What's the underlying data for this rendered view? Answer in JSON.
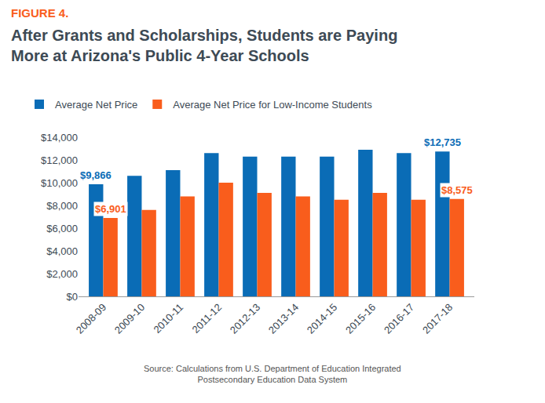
{
  "chart_data": {
    "type": "bar",
    "figure_label": "FIGURE 4.",
    "title": "After Grants and Scholarships, Students are Paying\nMore at Arizona's Public 4-Year Schools",
    "source": "Source: Calculations from U.S. Department of Education Integrated\nPostsecondary Education Data System",
    "categories": [
      "2008-09",
      "2009-10",
      "2010-11",
      "2011-12",
      "2012-13",
      "2013-14",
      "2014-15",
      "2015-16",
      "2016-17",
      "2017-18"
    ],
    "series": [
      {
        "name": "Average Net Price",
        "color": "#0a6cb6",
        "values": [
          9866,
          10600,
          11100,
          12600,
          12300,
          12300,
          12300,
          12900,
          12600,
          12735
        ],
        "value_labels": [
          "$9,866",
          null,
          null,
          null,
          null,
          null,
          null,
          null,
          null,
          "$12,735"
        ]
      },
      {
        "name": "Average Net Price for Low-Income Students",
        "color": "#f95d1c",
        "values": [
          6901,
          7600,
          8800,
          10000,
          9100,
          8800,
          8500,
          9100,
          8500,
          8575
        ],
        "value_labels": [
          "$6,901",
          null,
          null,
          null,
          null,
          null,
          null,
          null,
          null,
          "$8,575"
        ]
      }
    ],
    "ylim": [
      0,
      14000
    ],
    "yticks": [
      {
        "value": 0,
        "label": "$0"
      },
      {
        "value": 2000,
        "label": "$2,000"
      },
      {
        "value": 4000,
        "label": "$4,000"
      },
      {
        "value": 6000,
        "label": "$6,000"
      },
      {
        "value": 8000,
        "label": "$8,000"
      },
      {
        "value": 10000,
        "label": "$10,000"
      },
      {
        "value": 12000,
        "label": "$12,000"
      },
      {
        "value": 14000,
        "label": "$14,000"
      }
    ],
    "grid": false,
    "legend": "top left"
  }
}
